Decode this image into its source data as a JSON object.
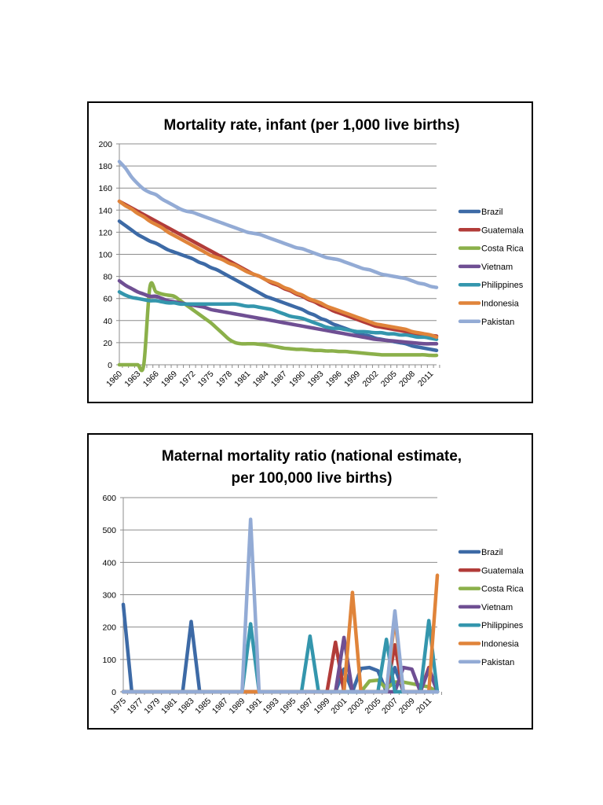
{
  "colors": {
    "Brazil": "#3d6aa6",
    "Guatemala": "#b23c39",
    "Costa Rica": "#8bb04a",
    "Vietnam": "#6f4f93",
    "Philippines": "#3496ad",
    "Indonesia": "#e0843a",
    "Pakistan": "#93abd5"
  },
  "chart_data": [
    {
      "type": "line",
      "title": "Mortality rate, infant (per 1,000 live births)",
      "xlabel": "",
      "ylabel": "",
      "ylim": [
        0,
        200
      ],
      "yticks": [
        0,
        20,
        40,
        60,
        80,
        100,
        120,
        140,
        160,
        180,
        200
      ],
      "grid": true,
      "legend": "right",
      "x": [
        1960,
        1961,
        1962,
        1963,
        1964,
        1965,
        1966,
        1967,
        1968,
        1969,
        1970,
        1971,
        1972,
        1973,
        1974,
        1975,
        1976,
        1977,
        1978,
        1979,
        1980,
        1981,
        1982,
        1983,
        1984,
        1985,
        1986,
        1987,
        1988,
        1989,
        1990,
        1991,
        1992,
        1993,
        1994,
        1995,
        1996,
        1997,
        1998,
        1999,
        2000,
        2001,
        2002,
        2003,
        2004,
        2005,
        2006,
        2007,
        2008,
        2009,
        2010,
        2011,
        2012
      ],
      "xtick_labels": [
        "1960",
        "1963",
        "1966",
        "1969",
        "1972",
        "1975",
        "1978",
        "1981",
        "1984",
        "1987",
        "1990",
        "1993",
        "1996",
        "1999",
        "2002",
        "2005",
        "2008",
        "2011"
      ],
      "series": [
        {
          "name": "Brazil",
          "values": [
            130,
            126,
            122,
            118,
            115,
            112,
            110,
            107,
            104,
            102,
            100,
            98,
            96,
            93,
            91,
            88,
            86,
            83,
            80,
            77,
            74,
            71,
            68,
            65,
            62,
            60,
            58,
            56,
            54,
            52,
            50,
            47,
            45,
            42,
            40,
            37,
            35,
            33,
            31,
            29,
            27,
            26,
            24,
            23,
            22,
            21,
            20,
            19,
            17,
            16,
            15,
            14,
            13
          ]
        },
        {
          "name": "Guatemala",
          "values": [
            148,
            145,
            142,
            139,
            136,
            133,
            130,
            127,
            124,
            121,
            118,
            115,
            112,
            109,
            106,
            103,
            100,
            97,
            94,
            91,
            88,
            85,
            82,
            80,
            77,
            74,
            72,
            69,
            67,
            64,
            62,
            59,
            57,
            54,
            52,
            49,
            47,
            45,
            43,
            41,
            39,
            37,
            35,
            34,
            33,
            32,
            31,
            30,
            29,
            28,
            27,
            26.5,
            26
          ]
        },
        {
          "name": "Costa Rica",
          "values": [
            0,
            0,
            0,
            0,
            0,
            70,
            66,
            64,
            63,
            62,
            58,
            54,
            50,
            46,
            42,
            38,
            33,
            28,
            23,
            20,
            19,
            19,
            19,
            18.5,
            18,
            17,
            16,
            15,
            14.5,
            14,
            14,
            13.5,
            13,
            13,
            12.5,
            12.5,
            12,
            12,
            11.5,
            11,
            10.5,
            10,
            9.5,
            9,
            9,
            9,
            9,
            9,
            9,
            9,
            9,
            8.5,
            8.5
          ]
        },
        {
          "name": "Vietnam",
          "values": [
            76,
            72,
            69,
            66,
            64,
            62,
            62,
            60,
            58,
            57,
            56,
            55,
            54,
            53,
            52,
            50,
            49,
            48,
            47,
            46,
            45,
            44,
            43,
            42,
            41,
            40,
            39,
            38,
            37,
            36,
            35,
            34,
            33,
            32,
            31,
            30,
            29,
            28,
            27,
            26,
            25,
            24,
            23,
            22.5,
            22,
            21.5,
            21,
            20.5,
            20,
            19.5,
            19,
            19,
            19
          ]
        },
        {
          "name": "Philippines",
          "values": [
            66,
            63,
            61,
            60,
            59,
            58,
            58,
            57,
            56,
            56,
            55,
            55,
            55,
            55,
            55,
            55,
            55,
            55,
            55,
            55,
            54,
            53,
            53,
            52,
            51,
            50,
            48,
            46,
            44,
            43,
            42,
            40,
            38,
            36,
            34,
            33,
            33,
            32,
            31,
            30,
            30,
            29.5,
            29,
            29,
            28,
            28,
            27,
            27,
            26,
            25,
            25,
            24,
            23
          ]
        },
        {
          "name": "Indonesia",
          "values": [
            148,
            144,
            141,
            137,
            134,
            130,
            127,
            124,
            120,
            117,
            114,
            111,
            108,
            105,
            102,
            99,
            97,
            95,
            92,
            90,
            87,
            84,
            82,
            80,
            77,
            75,
            73,
            70,
            68,
            65,
            63,
            60,
            58,
            56,
            53,
            51,
            49,
            47,
            45,
            43,
            41,
            39,
            37,
            36,
            35,
            34,
            33,
            32,
            30,
            29,
            28,
            27,
            25
          ]
        },
        {
          "name": "Pakistan",
          "values": [
            184,
            178,
            170,
            164,
            159,
            156,
            154,
            150,
            147,
            144,
            141,
            139,
            138,
            136,
            134,
            132,
            130,
            128,
            126,
            124,
            122,
            120,
            119,
            118,
            116,
            114,
            112,
            110,
            108,
            106,
            105,
            103,
            101,
            99,
            97,
            96,
            95,
            93,
            91,
            89,
            87,
            86,
            84,
            82,
            81,
            80,
            79,
            78,
            76,
            74,
            73,
            71,
            70
          ]
        }
      ]
    },
    {
      "type": "line",
      "title": "Maternal mortality ratio (national estimate, per 100,000 live births)",
      "title_lines": [
        "Maternal mortality ratio (national estimate,",
        "per 100,000 live births)"
      ],
      "xlabel": "",
      "ylabel": "",
      "ylim": [
        0,
        600
      ],
      "yticks": [
        0,
        100,
        200,
        300,
        400,
        500,
        600
      ],
      "grid": true,
      "legend": "right",
      "x": [
        1975,
        1976,
        1977,
        1978,
        1979,
        1980,
        1981,
        1982,
        1983,
        1984,
        1985,
        1986,
        1987,
        1988,
        1989,
        1990,
        1991,
        1992,
        1993,
        1994,
        1995,
        1996,
        1997,
        1998,
        1999,
        2000,
        2001,
        2002,
        2003,
        2004,
        2005,
        2006,
        2007,
        2008,
        2009,
        2010,
        2011,
        2012
      ],
      "xtick_labels": [
        "1975",
        "1977",
        "1979",
        "1981",
        "1983",
        "1985",
        "1987",
        "1989",
        "1991",
        "1993",
        "1995",
        "1997",
        "1999",
        "2001",
        "2003",
        "2005",
        "2007",
        "2009",
        "2011"
      ],
      "series": [
        {
          "name": "Brazil",
          "values": [
            270,
            0,
            0,
            0,
            0,
            0,
            0,
            0,
            217,
            0,
            0,
            0,
            0,
            0,
            0,
            0,
            0,
            0,
            0,
            0,
            0,
            0,
            0,
            0,
            0,
            0,
            70,
            0,
            72,
            75,
            65,
            0,
            75,
            0,
            0,
            0,
            0,
            0
          ]
        },
        {
          "name": "Guatemala",
          "values": [
            0,
            0,
            0,
            0,
            0,
            0,
            0,
            0,
            0,
            0,
            0,
            0,
            0,
            0,
            0,
            0,
            0,
            0,
            0,
            0,
            0,
            0,
            0,
            0,
            0,
            153,
            0,
            0,
            0,
            0,
            0,
            0,
            145,
            0,
            0,
            0,
            75,
            0
          ]
        },
        {
          "name": "Costa Rica",
          "values": [
            0,
            0,
            0,
            0,
            0,
            0,
            0,
            0,
            0,
            0,
            0,
            0,
            0,
            0,
            0,
            0,
            0,
            0,
            0,
            0,
            0,
            0,
            0,
            0,
            0,
            0,
            0,
            0,
            0,
            33,
            36,
            10,
            30,
            30,
            25,
            20,
            15,
            0
          ]
        },
        {
          "name": "Vietnam",
          "values": [
            0,
            0,
            0,
            0,
            0,
            0,
            0,
            0,
            0,
            0,
            0,
            0,
            0,
            0,
            0,
            0,
            0,
            0,
            0,
            0,
            0,
            0,
            0,
            0,
            0,
            0,
            168,
            0,
            0,
            0,
            0,
            0,
            0,
            75,
            70,
            0,
            70,
            0
          ]
        },
        {
          "name": "Philippines",
          "values": [
            0,
            0,
            0,
            0,
            0,
            0,
            0,
            0,
            0,
            0,
            0,
            0,
            0,
            0,
            0,
            210,
            0,
            0,
            0,
            0,
            0,
            0,
            172,
            0,
            0,
            0,
            0,
            0,
            0,
            0,
            0,
            162,
            0,
            0,
            0,
            0,
            220,
            0
          ]
        },
        {
          "name": "Indonesia",
          "values": [
            0,
            0,
            0,
            0,
            0,
            0,
            0,
            0,
            0,
            0,
            0,
            0,
            0,
            0,
            0,
            0,
            0,
            0,
            0,
            0,
            0,
            0,
            0,
            0,
            0,
            0,
            0,
            307,
            0,
            0,
            0,
            0,
            228,
            0,
            0,
            0,
            0,
            360
          ]
        },
        {
          "name": "Pakistan",
          "values": [
            0,
            0,
            0,
            0,
            0,
            0,
            0,
            0,
            0,
            0,
            0,
            0,
            0,
            0,
            0,
            533,
            0,
            0,
            0,
            0,
            0,
            0,
            0,
            0,
            0,
            0,
            0,
            0,
            0,
            0,
            0,
            0,
            250,
            0,
            0,
            0,
            0,
            0
          ]
        }
      ]
    }
  ]
}
